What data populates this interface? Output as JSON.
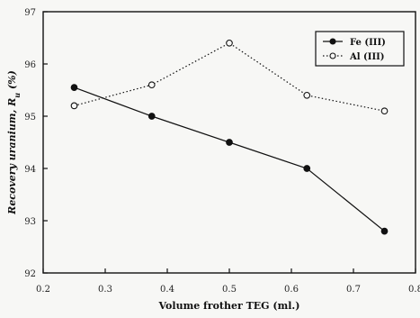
{
  "chart_data": {
    "type": "line",
    "title": "",
    "xlabel": "Volume frother TEG (ml.)",
    "ylabel": "Recovery uranium, R",
    "ylabel_subscript": "u",
    "ylabel_suffix": " (%)",
    "xlim": [
      0.2,
      0.8
    ],
    "ylim": [
      92,
      97
    ],
    "x_ticks": [
      0.2,
      0.3,
      0.4,
      0.5,
      0.6,
      0.7,
      0.8
    ],
    "x_tick_labels": [
      "0.2",
      "0.3",
      "0.4",
      "0.5",
      "0.6",
      "0.7",
      "0.8"
    ],
    "y_ticks": [
      92,
      93,
      94,
      95,
      96,
      97
    ],
    "y_tick_labels": [
      "92",
      "93",
      "94",
      "95",
      "96",
      "97"
    ],
    "grid": false,
    "legend_position": "top-right",
    "series": [
      {
        "name": "Fe (III)",
        "marker": "filled-circle",
        "line_style": "solid",
        "color": "#111111",
        "x": [
          0.25,
          0.375,
          0.5,
          0.625,
          0.75
        ],
        "values": [
          95.55,
          95.0,
          94.5,
          94.0,
          92.8
        ]
      },
      {
        "name": "Al (III)",
        "marker": "open-circle",
        "line_style": "dotted",
        "color": "#111111",
        "x": [
          0.25,
          0.375,
          0.5,
          0.625,
          0.75
        ],
        "values": [
          95.2,
          95.6,
          96.4,
          95.4,
          95.1
        ]
      }
    ]
  }
}
